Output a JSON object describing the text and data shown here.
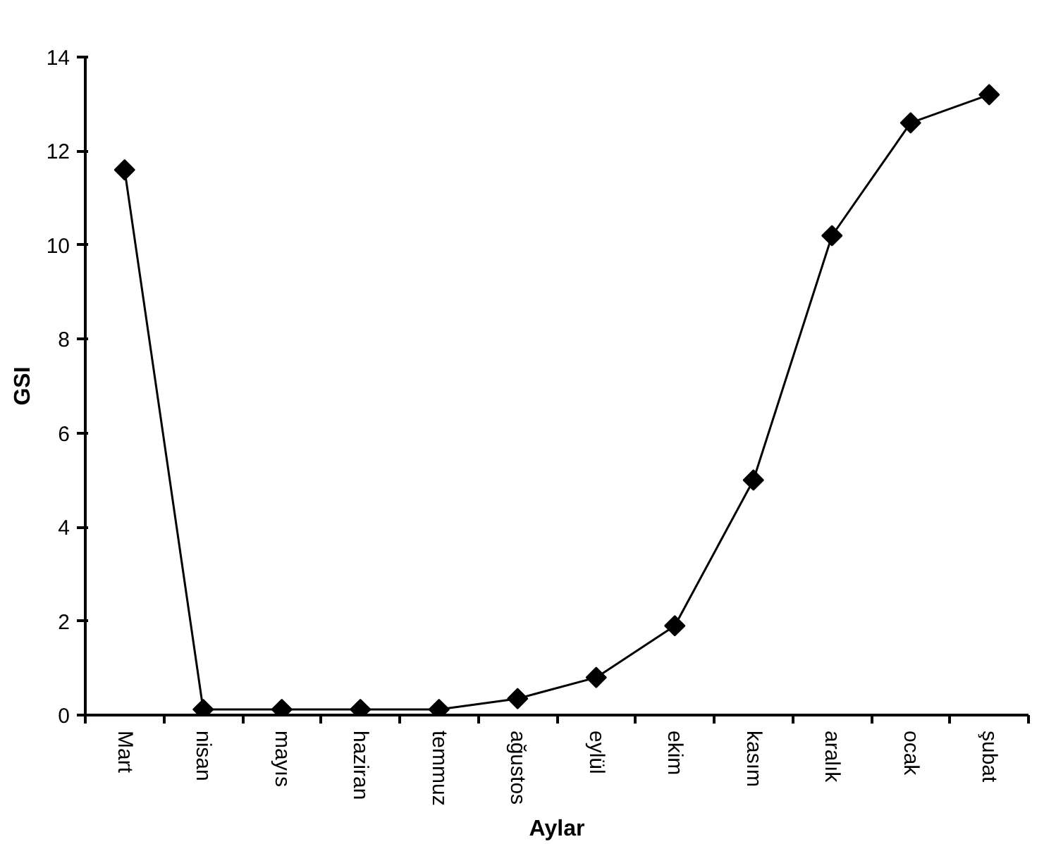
{
  "chart_data": {
    "type": "line",
    "xlabel": "Aylar",
    "ylabel": "GSI",
    "categories": [
      "Mart",
      "nisan",
      "mayıs",
      "haziran",
      "temmuz",
      "ağustos",
      "eylül",
      "ekim",
      "kasım",
      "aralık",
      "ocak",
      "şubat"
    ],
    "series": [
      {
        "color": "#000000",
        "values": [
          11.6,
          0.12,
          0.12,
          0.12,
          0.12,
          0.35,
          0.8,
          1.9,
          5.0,
          10.2,
          12.6,
          13.2
        ]
      }
    ],
    "ylim": [
      0,
      14
    ],
    "yticks": [
      0,
      2,
      4,
      6,
      8,
      10,
      12,
      14
    ],
    "grid": false,
    "marker": "diamond",
    "line_style": "solid"
  }
}
